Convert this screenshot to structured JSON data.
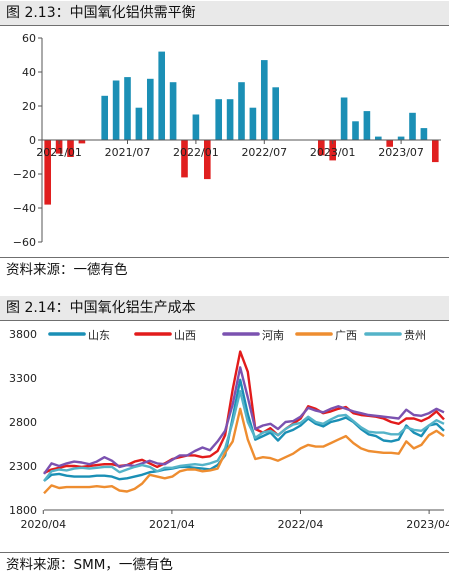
{
  "figures": [
    {
      "title": "图 2.13：中国氧化铝供需平衡",
      "source": "资料来源：一德有色"
    },
    {
      "title": "图 2.14：中国氧化铝生产成本",
      "source": "资料来源：SMM，一德有色"
    }
  ],
  "chart_data": [
    {
      "type": "bar",
      "title": "中国氧化铝供需平衡",
      "ylim": [
        -60,
        60
      ],
      "yticks": [
        "60",
        "40",
        "20",
        "0",
        "−20",
        "−40",
        "−60"
      ],
      "ytick_values": [
        60,
        40,
        20,
        0,
        -20,
        -40,
        -60
      ],
      "xticks": [
        "2021/01",
        "2021/07",
        "2022/01",
        "2022/07",
        "2023/01",
        "2023/07"
      ],
      "xtick_values": [
        "2021-01",
        "2021-07",
        "2022-01",
        "2022-07",
        "2023-01",
        "2023-07"
      ],
      "x_start": "2020-12",
      "positive_color": "#1b8fb5",
      "negative_color": "#e01f1f",
      "values": [
        -38,
        -8,
        -10,
        -2,
        0,
        26,
        35,
        37,
        19,
        36,
        52,
        34,
        -22,
        15,
        -23,
        24,
        24,
        34,
        19,
        47,
        31,
        0,
        0,
        0,
        -9,
        -12,
        25,
        11,
        17,
        2,
        -4,
        2,
        16,
        7,
        -13
      ]
    },
    {
      "type": "line",
      "title": "中国氧化铝生产成本",
      "ylim": [
        1800,
        3800
      ],
      "yticks": [
        "3800",
        "3300",
        "2800",
        "2300",
        "1800"
      ],
      "ytick_values": [
        3800,
        3300,
        2800,
        2300,
        1800
      ],
      "xticks": [
        "2020/04",
        "2021/04",
        "2022/04",
        "2023/04"
      ],
      "xtick_values": [
        "2020-04",
        "2021-04",
        "2022-04",
        "2023-04"
      ],
      "x_unit": "week",
      "x_start": "2020-04-03",
      "series": [
        {
          "name": "山东",
          "color": "#1a8fb5",
          "values": [
            2130,
            2200,
            2210,
            2190,
            2180,
            2180,
            2180,
            2190,
            2190,
            2180,
            2150,
            2160,
            2180,
            2200,
            2230,
            2240,
            2260,
            2270,
            2290,
            2290,
            2280,
            2270,
            2260,
            2310,
            2420,
            2850,
            3280,
            2890,
            2600,
            2640,
            2680,
            2590,
            2680,
            2710,
            2760,
            2840,
            2780,
            2750,
            2800,
            2820,
            2850,
            2800,
            2720,
            2660,
            2640,
            2590,
            2580,
            2600,
            2760,
            2680,
            2640,
            2760,
            2780,
            2700
          ]
        },
        {
          "name": "山西",
          "color": "#e21b1b",
          "values": [
            2220,
            2260,
            2280,
            2300,
            2300,
            2290,
            2300,
            2310,
            2320,
            2320,
            2300,
            2310,
            2350,
            2370,
            2330,
            2290,
            2330,
            2380,
            2400,
            2420,
            2420,
            2400,
            2410,
            2470,
            2650,
            3170,
            3600,
            3370,
            2720,
            2680,
            2730,
            2650,
            2720,
            2780,
            2840,
            2980,
            2950,
            2900,
            2920,
            2950,
            2970,
            2900,
            2880,
            2870,
            2860,
            2840,
            2800,
            2780,
            2840,
            2840,
            2810,
            2850,
            2920,
            2830
          ]
        },
        {
          "name": "河南",
          "color": "#7b52b0",
          "values": [
            2210,
            2330,
            2300,
            2330,
            2350,
            2340,
            2320,
            2350,
            2400,
            2360,
            2290,
            2310,
            2300,
            2330,
            2360,
            2330,
            2320,
            2370,
            2420,
            2420,
            2470,
            2510,
            2480,
            2580,
            2700,
            3000,
            3420,
            3080,
            2720,
            2760,
            2780,
            2720,
            2800,
            2810,
            2860,
            2960,
            2930,
            2910,
            2950,
            2980,
            2950,
            2920,
            2900,
            2880,
            2870,
            2860,
            2850,
            2840,
            2940,
            2880,
            2870,
            2900,
            2950,
            2910
          ]
        },
        {
          "name": "广西",
          "color": "#ee8d30",
          "values": [
            1990,
            2080,
            2050,
            2060,
            2060,
            2060,
            2060,
            2070,
            2060,
            2070,
            2020,
            2010,
            2040,
            2100,
            2200,
            2180,
            2160,
            2180,
            2240,
            2260,
            2260,
            2240,
            2250,
            2270,
            2450,
            2580,
            2950,
            2600,
            2380,
            2400,
            2390,
            2360,
            2400,
            2440,
            2500,
            2540,
            2520,
            2520,
            2560,
            2600,
            2640,
            2560,
            2500,
            2470,
            2460,
            2450,
            2450,
            2440,
            2580,
            2500,
            2540,
            2650,
            2700,
            2640
          ]
        },
        {
          "name": "贵州",
          "color": "#54b3c8",
          "values": [
            2130,
            2240,
            2260,
            2250,
            2270,
            2280,
            2270,
            2280,
            2290,
            2290,
            2230,
            2260,
            2290,
            2310,
            2290,
            2240,
            2280,
            2280,
            2300,
            2310,
            2320,
            2310,
            2330,
            2360,
            2500,
            2800,
            3150,
            2800,
            2620,
            2680,
            2700,
            2650,
            2720,
            2770,
            2790,
            2860,
            2800,
            2780,
            2830,
            2870,
            2880,
            2810,
            2740,
            2690,
            2680,
            2680,
            2660,
            2660,
            2740,
            2710,
            2700,
            2760,
            2820,
            2780
          ]
        }
      ]
    }
  ]
}
